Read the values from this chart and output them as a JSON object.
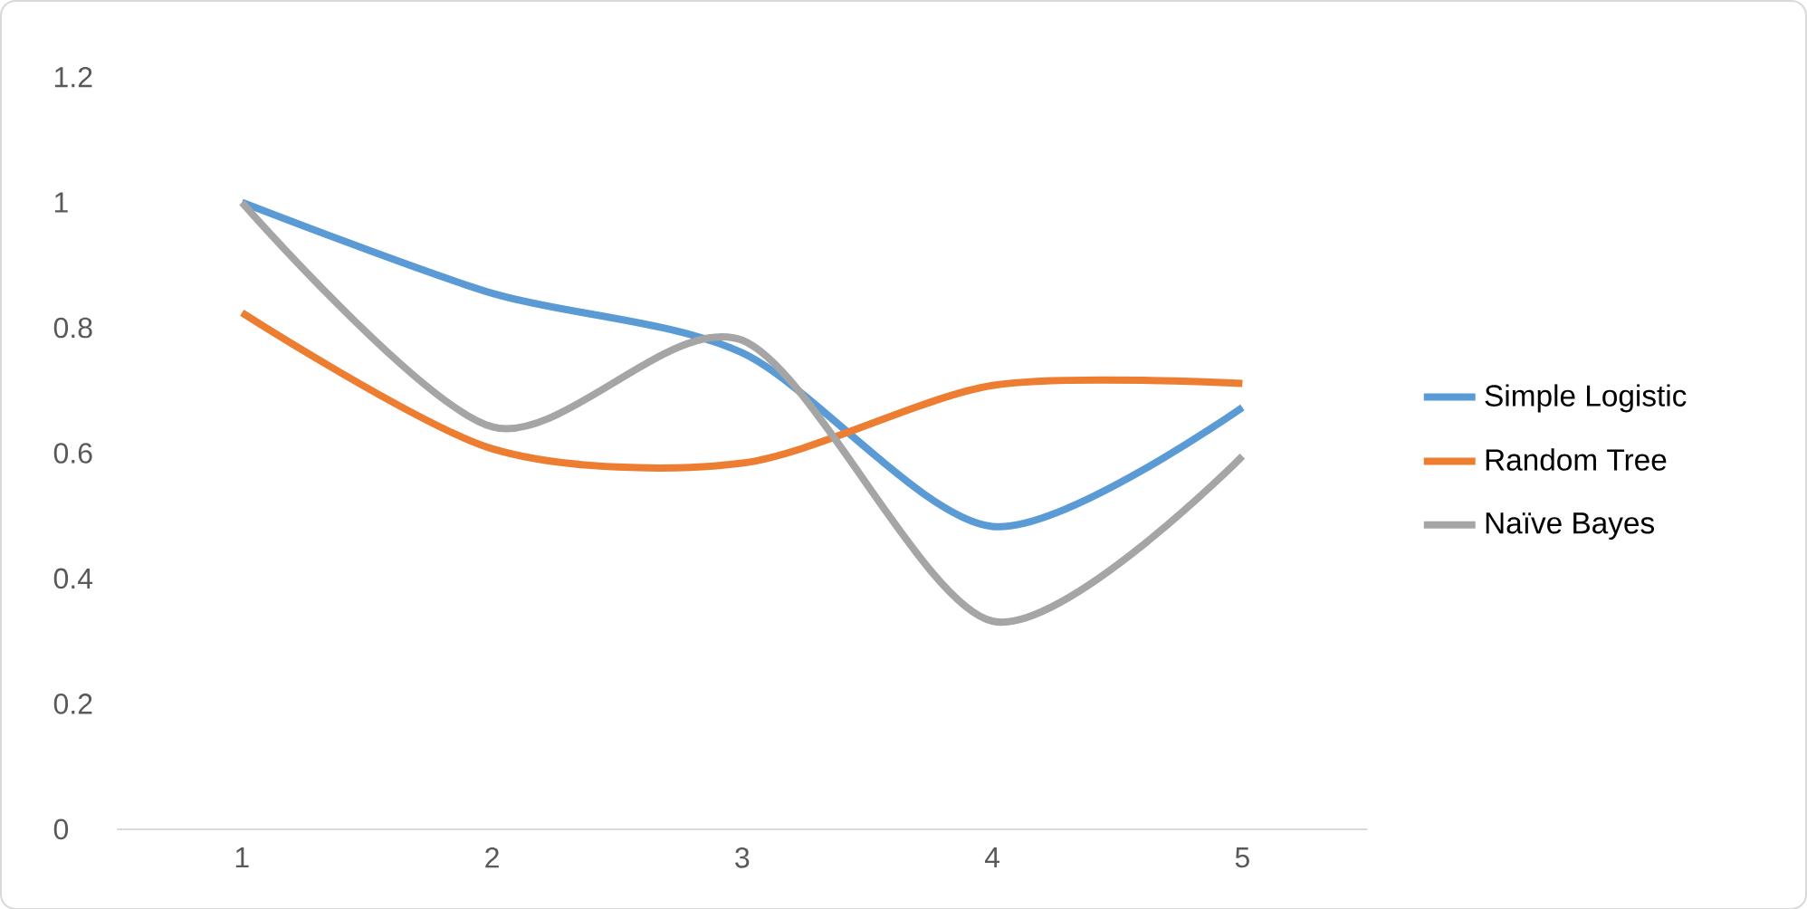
{
  "chart_data": {
    "type": "line",
    "categories": [
      "1",
      "2",
      "3",
      "4",
      "5"
    ],
    "series": [
      {
        "name": "Simple Logistic",
        "color": "#5b9bd5",
        "values": [
          1.0,
          0.855,
          0.76,
          0.483,
          0.673
        ]
      },
      {
        "name": "Random Tree",
        "color": "#ed7d31",
        "values": [
          0.824,
          0.607,
          0.584,
          0.708,
          0.711
        ]
      },
      {
        "name": "Naïve Bayes",
        "color": "#a5a5a5",
        "values": [
          1.0,
          0.642,
          0.78,
          0.332,
          0.595
        ]
      }
    ],
    "ylim": [
      0,
      1.2
    ],
    "yticks": [
      0,
      0.2,
      0.4,
      0.6,
      0.8,
      1,
      1.2
    ],
    "legend": "right"
  }
}
